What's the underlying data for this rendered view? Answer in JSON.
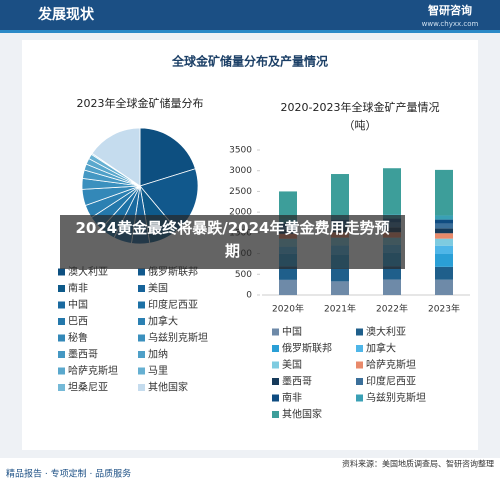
{
  "header": {
    "title": "发展现状",
    "brand": "智研咨询",
    "url": "www.chyxx.com",
    "panel_title": "全球金矿储量分布及产量情况"
  },
  "overlay": {
    "text": "2024黄金最终将暴跌/2024年黄金费用走势预期"
  },
  "footer": {
    "left": "精品报告 · 专项定制 · 品质服务",
    "source": "资料来源：美国地质调查局、智研咨询整理"
  },
  "chart_data": [
    {
      "type": "pie",
      "title": "2023年全球金矿储量分布",
      "categories": [
        "澳大利亚",
        "俄罗斯联邦",
        "南非",
        "美国",
        "中国",
        "印度尼西亚",
        "巴西",
        "加拿大",
        "秘鲁",
        "乌兹别克斯坦",
        "墨西哥",
        "加纳",
        "哈萨克斯坦",
        "马里",
        "坦桑尼亚",
        "其他国家"
      ],
      "values": [
        12000,
        11100,
        5000,
        3000,
        3000,
        2600,
        2400,
        2200,
        2700,
        1800,
        1400,
        1000,
        1000,
        800,
        200,
        9200
      ],
      "colors": [
        "#0d4f80",
        "#11588c",
        "#0e5a8a",
        "#16639a",
        "#1a6aa0",
        "#1c71a6",
        "#2478ab",
        "#2b80b2",
        "#3388b8",
        "#3b90be",
        "#4598c3",
        "#4fa0c8",
        "#5aa8cd",
        "#66b0d2",
        "#75b9d7",
        "#c5dcee"
      ]
    },
    {
      "type": "bar",
      "stacked": true,
      "title": "2020-2023年全球金矿产量情况",
      "subtitle": "（吨）",
      "categories": [
        "2020年",
        "2021年",
        "2022年",
        "2023年"
      ],
      "ylim": [
        0,
        3500
      ],
      "yticks": [
        0,
        500,
        1000,
        1500,
        2000,
        2500,
        3000,
        3500
      ],
      "grid": false,
      "series": [
        {
          "name": "中国",
          "color": "#6e8aa8",
          "values": [
            365,
            329,
            375,
            370
          ]
        },
        {
          "name": "澳大利亚",
          "color": "#1f5f8b",
          "values": [
            328,
            315,
            320,
            310
          ]
        },
        {
          "name": "俄罗斯联邦",
          "color": "#2a9fd6",
          "values": [
            305,
            331,
            320,
            310
          ]
        },
        {
          "name": "加拿大",
          "color": "#4fb6e8",
          "values": [
            170,
            223,
            200,
            200
          ]
        },
        {
          "name": "美国",
          "color": "#7ecbe0",
          "values": [
            190,
            187,
            170,
            170
          ]
        },
        {
          "name": "哈萨克斯坦",
          "color": "#e8896a",
          "values": [
            120,
            130,
            130,
            130
          ]
        },
        {
          "name": "墨西哥",
          "color": "#163a5a",
          "values": [
            100,
            125,
            120,
            120
          ]
        },
        {
          "name": "印度尼西亚",
          "color": "#3b6f9a",
          "values": [
            60,
            79,
            110,
            110
          ]
        },
        {
          "name": "南非",
          "color": "#0f4c81",
          "values": [
            96,
            100,
            100,
            100
          ]
        },
        {
          "name": "乌兹别克斯坦",
          "color": "#3aa0b5",
          "values": [
            101,
            100,
            100,
            100
          ]
        },
        {
          "name": "其他国家",
          "color": "#3d9e9a",
          "values": [
            665,
            1001,
            1115,
            1100
          ]
        }
      ]
    }
  ]
}
